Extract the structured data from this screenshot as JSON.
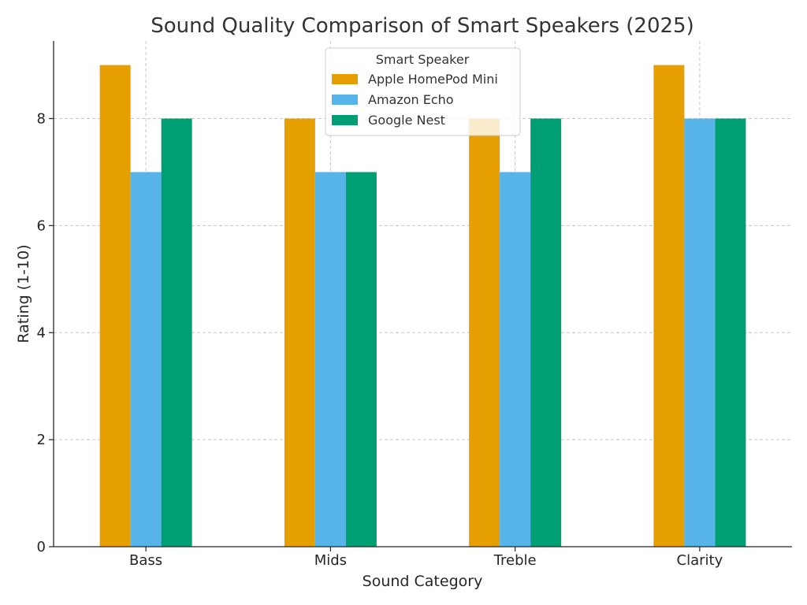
{
  "chart_data": {
    "type": "bar",
    "title": "Sound Quality Comparison of Smart Speakers (2025)",
    "xlabel": "Sound Category",
    "ylabel": "Rating (1-10)",
    "categories": [
      "Bass",
      "Mids",
      "Treble",
      "Clarity"
    ],
    "ylim": [
      0,
      9.45
    ],
    "yticks": [
      0,
      2,
      4,
      6,
      8
    ],
    "grid": true,
    "legend": {
      "title": "Smart Speaker",
      "placement": "top-center"
    },
    "series": [
      {
        "name": "Apple HomePod Mini",
        "color": "#E69F00",
        "values": [
          9,
          8,
          8,
          9
        ]
      },
      {
        "name": "Amazon Echo",
        "color": "#56B4E9",
        "values": [
          7,
          7,
          7,
          8
        ]
      },
      {
        "name": "Google Nest",
        "color": "#009E73",
        "values": [
          8,
          7,
          8,
          8
        ]
      }
    ]
  }
}
